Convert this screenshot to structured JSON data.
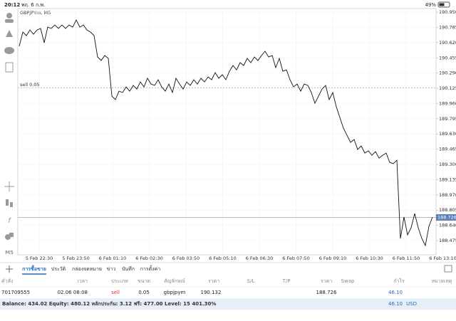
{
  "status": {
    "time": "20:12",
    "date": "พฤ. 6 ก.พ.",
    "battery": "49%"
  },
  "timeframe": "M5",
  "chart": {
    "type": "line",
    "symbol": "GBPJPYm, M5",
    "color": "#111111",
    "values": [
      190.58,
      190.734,
      190.696,
      190.757,
      190.711,
      190.757,
      190.773,
      190.618,
      190.788,
      190.773,
      190.811,
      190.773,
      190.811,
      190.773,
      190.811,
      190.788,
      190.865,
      190.788,
      190.811,
      190.757,
      190.734,
      190.696,
      190.464,
      190.426,
      190.48,
      190.449,
      190.04,
      190.002,
      190.094,
      190.079,
      190.14,
      190.094,
      190.156,
      190.117,
      190.194,
      190.14,
      190.233,
      190.171,
      190.156,
      190.218,
      190.14,
      190.094,
      190.171,
      190.079,
      190.233,
      190.171,
      190.117,
      190.194,
      190.156,
      190.218,
      190.171,
      190.233,
      190.194,
      190.248,
      190.218,
      190.295,
      190.233,
      190.272,
      190.218,
      190.31,
      190.372,
      190.325,
      190.403,
      190.372,
      190.449,
      190.403,
      190.464,
      190.426,
      190.48,
      190.526,
      190.464,
      190.48,
      190.349,
      190.449,
      190.31,
      190.325,
      190.218,
      190.14,
      190.171,
      190.094,
      190.171,
      190.156,
      190.079,
      189.963,
      190.04,
      190.117,
      190.156,
      190.002,
      190.079,
      189.925,
      189.809,
      189.693,
      189.616,
      189.539,
      189.57,
      189.462,
      189.501,
      189.423,
      189.447,
      189.4,
      189.439,
      189.369,
      189.4,
      189.423,
      189.323,
      189.308,
      189.346,
      188.498,
      188.73,
      188.537,
      188.614,
      188.768,
      188.614,
      188.498,
      188.421,
      188.629,
      188.73
    ],
    "ylim": [
      188.321,
      190.989
    ],
    "yticks": [
      {
        "value": 190.95,
        "label": "190.950"
      },
      190.785,
      {
        "value": 190.62,
        "label": "190.620"
      },
      190.455,
      {
        "value": 190.29,
        "label": "190.290"
      },
      190.125,
      {
        "value": 189.96,
        "label": "189.960"
      },
      189.795,
      {
        "value": 189.63,
        "label": "189.630"
      },
      189.465,
      {
        "value": 189.3,
        "label": "189.300"
      },
      189.135,
      {
        "value": 188.97,
        "label": "188.970"
      },
      188.805,
      {
        "value": 188.64,
        "label": "188.640"
      },
      188.475
    ],
    "xticks": [
      "5 Feb 22:30",
      "5 Feb 23:50",
      "6 Feb 01:10",
      "6 Feb 02:30",
      "6 Feb 03:50",
      "6 Feb 05:10",
      "6 Feb 06:30",
      "6 Feb 07:50",
      "6 Feb 09:10",
      "6 Feb 10:30",
      "6 Feb 11:50",
      "6 Feb 13:10"
    ],
    "order_line": {
      "label": "sell 0.05",
      "value": 190.132
    },
    "current_price": 188.726
  },
  "tabs": [
    "การซื้อขาย",
    "ประวัติ",
    "กล่องจดหมาย",
    "ข่าว",
    "บันทึก",
    "การตั้งค่า"
  ],
  "table": {
    "headers": [
      "คำสั่ง",
      "เวลา",
      "ประเภท",
      "ขนาด",
      "สัญลักษณ์",
      "ราคา",
      "S/L",
      "T/P",
      "ราคา",
      "Swap",
      "กำไร",
      "หมายเหตุ"
    ],
    "row": {
      "order": "701709555",
      "time": "02.06 08:08",
      "type": "sell",
      "volume": "0.05",
      "symbol": "gbpjpym",
      "open_price": "190.132",
      "price": "188.726",
      "profit": "46.10"
    }
  },
  "balance": {
    "text": "Balance: 434.02 Equity: 480.12 หลักประกัน: 3.12 ฟรี: 477.00 Level: 15 401.30%",
    "profit": "46.10",
    "currency": "USD"
  }
}
